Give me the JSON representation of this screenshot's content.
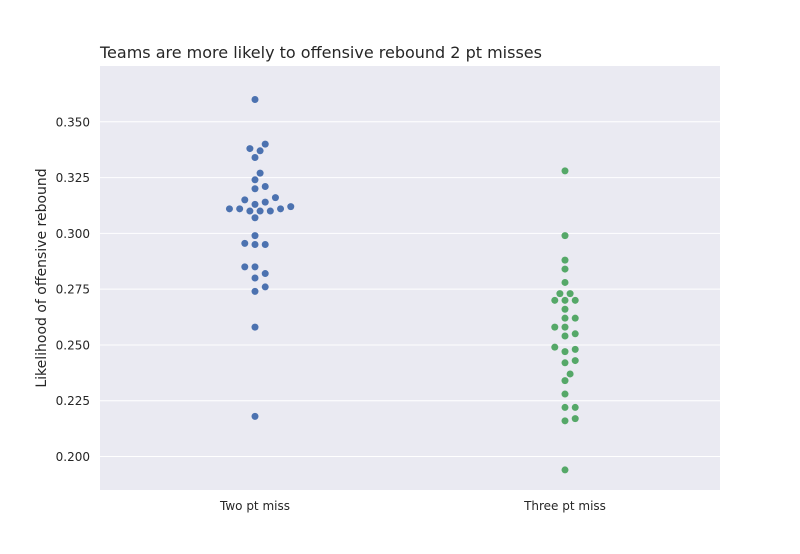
{
  "chart_data": {
    "type": "scatter",
    "subtype": "swarm",
    "title": "Teams are more likely to offensive rebound 2 pt misses",
    "xlabel": "",
    "ylabel": "Likelihood of offensive rebound",
    "categories": [
      "Two pt miss",
      "Three pt miss"
    ],
    "ylim": [
      0.185,
      0.375
    ],
    "yticks": [
      0.2,
      0.225,
      0.25,
      0.275,
      0.3,
      0.325,
      0.35
    ],
    "ytick_labels": [
      "0.200",
      "0.225",
      "0.250",
      "0.275",
      "0.300",
      "0.325",
      "0.350"
    ],
    "grid": true,
    "background": "#eaeaf2",
    "series": [
      {
        "category": "Two pt miss",
        "color": "#4c72b0",
        "values": [
          0.36,
          0.34,
          0.338,
          0.337,
          0.334,
          0.327,
          0.324,
          0.321,
          0.32,
          0.316,
          0.315,
          0.314,
          0.313,
          0.312,
          0.311,
          0.311,
          0.311,
          0.31,
          0.31,
          0.31,
          0.307,
          0.299,
          0.2955,
          0.295,
          0.295,
          0.285,
          0.285,
          0.282,
          0.28,
          0.276,
          0.274,
          0.258,
          0.218
        ]
      },
      {
        "category": "Three pt miss",
        "color": "#55a868",
        "values": [
          0.328,
          0.299,
          0.288,
          0.284,
          0.278,
          0.273,
          0.273,
          0.27,
          0.27,
          0.27,
          0.266,
          0.262,
          0.262,
          0.258,
          0.258,
          0.255,
          0.254,
          0.249,
          0.248,
          0.247,
          0.243,
          0.242,
          0.237,
          0.234,
          0.228,
          0.222,
          0.222,
          0.217,
          0.216,
          0.194
        ]
      }
    ]
  }
}
